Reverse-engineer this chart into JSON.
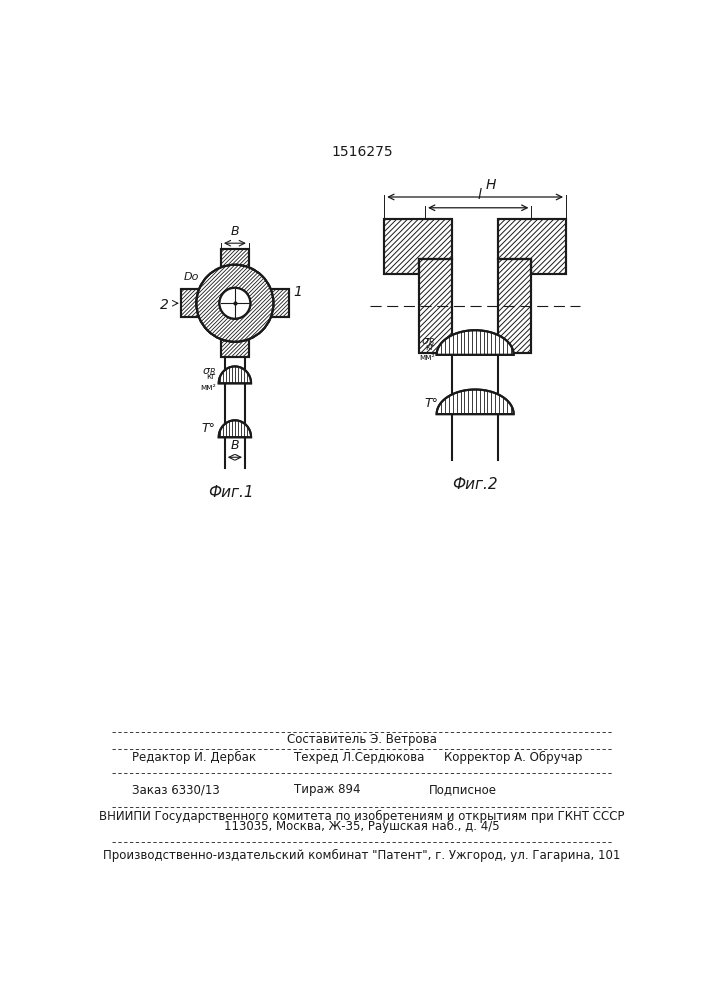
{
  "patent_number": "1516275",
  "fig1_label": "Фиг.1",
  "fig2_label": "Фиг.2",
  "footer_line1": "Составитель Э. Ветрова",
  "footer_editor": "Редактор И. Дербак",
  "footer_tech": "Техред Л.Сердюкова",
  "footer_corrector": "Корректор А. Обручар",
  "footer_order": "Заказ 6330/13",
  "footer_tirazh": "Тираж 894",
  "footer_podpisnoe": "Подписное",
  "footer_vniipii": "ВНИИПИ Государственного комитета по изобретениям и открытиям при ГКНТ СССР",
  "footer_address": "113035, Москва, Ж-35, Раушская наб., д. 4/5",
  "footer_patent": "Производственно-издательский комбинат \"Патент\", г. Ужгород, ул. Гагарина, 101",
  "bg_color": "#ffffff",
  "line_color": "#1a1a1a"
}
